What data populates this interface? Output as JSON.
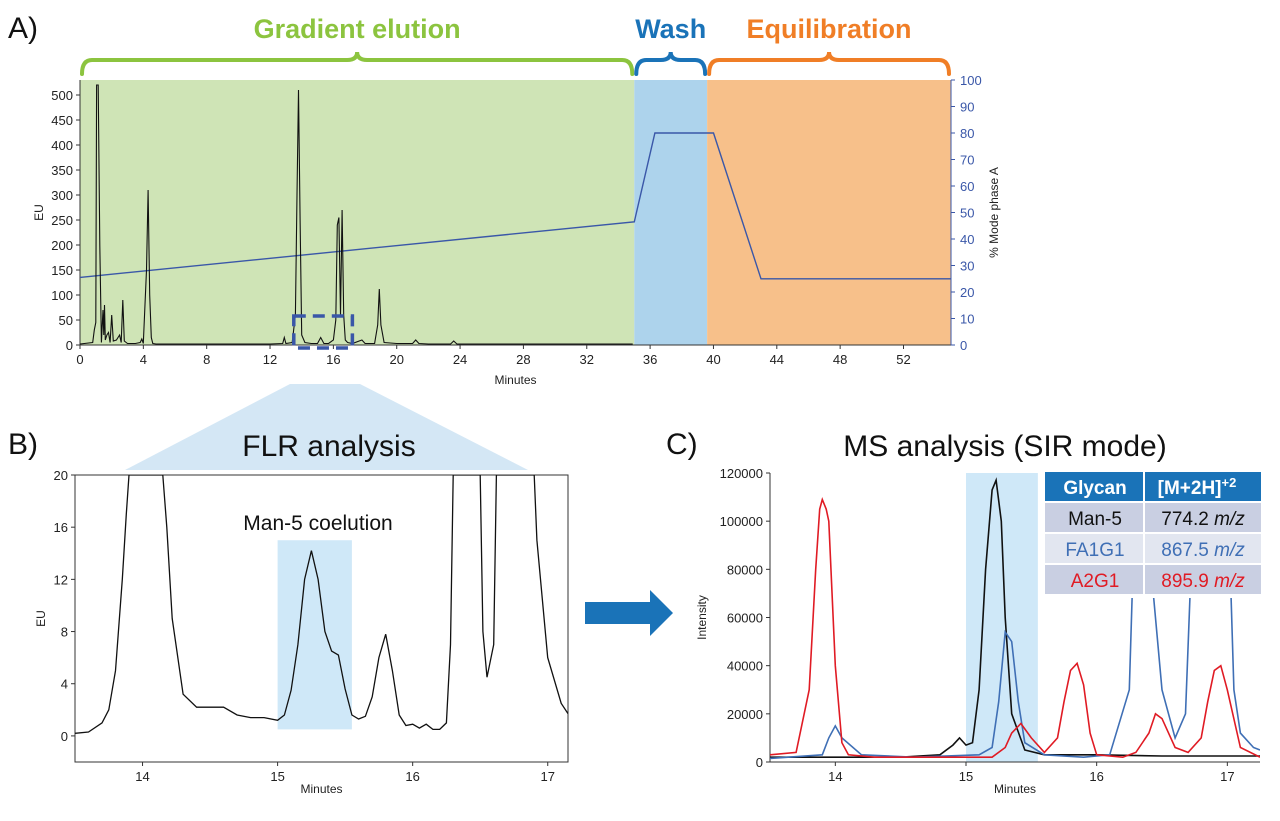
{
  "panels": {
    "a": {
      "label": "A)"
    },
    "b": {
      "label": "B)",
      "title": "FLR analysis",
      "annotation": "Man-5 coelution"
    },
    "c": {
      "label": "C)",
      "title": "MS analysis (SIR mode)"
    }
  },
  "table": {
    "headers": [
      "Glycan",
      "[M+2H]",
      "+2"
    ],
    "rows": [
      {
        "glycan": "Man-5",
        "mz": "774.2",
        "unit": "m/z",
        "color": "#111111",
        "bg": "#c9cfe2"
      },
      {
        "glycan": "FA1G1",
        "mz": "867.5",
        "unit": "m/z",
        "color": "#3f6fb5",
        "bg": "#e2e6f0"
      },
      {
        "glycan": "A2G1",
        "mz": "895.9",
        "unit": "m/z",
        "color": "#e01b24",
        "bg": "#c9cfe2"
      }
    ],
    "header_bg": "#1a73b8"
  },
  "chart_data": [
    {
      "id": "A",
      "type": "line",
      "xlabel": "Minutes",
      "ylabel": "EU",
      "y2label": "% Mode phase A",
      "xlim": [
        0,
        55
      ],
      "ylim": [
        0,
        520
      ],
      "y2lim": [
        0,
        100
      ],
      "x_ticks": [
        0,
        4,
        8,
        12,
        16,
        20,
        24,
        28,
        32,
        36,
        40,
        44,
        48,
        52
      ],
      "y_ticks": [
        0,
        50,
        100,
        150,
        200,
        250,
        300,
        350,
        400,
        450,
        500
      ],
      "y2_ticks": [
        0,
        10,
        20,
        30,
        40,
        50,
        60,
        70,
        80,
        90,
        100
      ],
      "regions": [
        {
          "name": "Gradient elution",
          "x": [
            0,
            35
          ],
          "color": "#cfe4b6",
          "label_color": "#8cc43f"
        },
        {
          "name": "Wash",
          "x": [
            35,
            39.6
          ],
          "color": "#add3ec",
          "label_color": "#1a73b8"
        },
        {
          "name": "Equilibration",
          "x": [
            39.6,
            55
          ],
          "color": "#f7c08a",
          "label_color": "#f07e26"
        }
      ],
      "zoom_box": {
        "x": [
          13.5,
          17.2
        ],
        "y": [
          0,
          58
        ]
      },
      "series": [
        {
          "axis": "y2",
          "color": "#3a57a8",
          "x": [
            0,
            35,
            36.3,
            40,
            43,
            55
          ],
          "y": [
            25.5,
            46.5,
            80,
            80,
            25,
            25
          ]
        },
        {
          "axis": "y",
          "color": "#111111",
          "x": [
            0,
            0.8,
            0.9,
            1.0,
            1.05,
            1.1,
            1.15,
            1.25,
            1.35,
            1.45,
            1.5,
            1.55,
            1.6,
            1.7,
            1.8,
            1.9,
            2.0,
            2.1,
            2.3,
            2.5,
            2.6,
            2.7,
            2.8,
            3.0,
            3.5,
            3.8,
            3.9,
            4.0,
            4.2,
            4.3,
            4.4,
            4.5,
            4.6,
            4.8,
            5.5,
            8,
            10,
            12,
            12.8,
            12.9,
            13.0,
            13.4,
            13.6,
            13.7,
            13.8,
            13.9,
            14.0,
            14.2,
            14.6,
            15.0,
            15.2,
            15.4,
            15.7,
            16.0,
            16.15,
            16.25,
            16.35,
            16.45,
            16.55,
            16.65,
            16.75,
            16.9,
            17.2,
            17.8,
            18.0,
            18.6,
            18.8,
            18.9,
            19.0,
            19.2,
            20,
            21,
            21.2,
            21.4,
            22,
            23.4,
            23.6,
            23.8,
            26,
            30,
            34.9
          ],
          "y": [
            2,
            5,
            30,
            45,
            520,
            520,
            520,
            200,
            5,
            70,
            20,
            80,
            10,
            20,
            25,
            5,
            60,
            8,
            10,
            20,
            5,
            90,
            8,
            3,
            3,
            5,
            12,
            3,
            150,
            310,
            100,
            15,
            3,
            2,
            2,
            2,
            2,
            2,
            3,
            15,
            3,
            5,
            60,
            300,
            510,
            250,
            20,
            5,
            3,
            3,
            15,
            3,
            3,
            10,
            50,
            240,
            255,
            60,
            270,
            60,
            10,
            5,
            3,
            10,
            3,
            3,
            40,
            112,
            40,
            5,
            3,
            3,
            10,
            3,
            2,
            2,
            8,
            2,
            2,
            2,
            2
          ]
        }
      ]
    },
    {
      "id": "B",
      "type": "line",
      "title": "FLR analysis",
      "xlabel": "Minutes",
      "ylabel": "EU",
      "xlim": [
        13.5,
        17.15
      ],
      "ylim": [
        -2,
        20
      ],
      "x_ticks": [
        14,
        15,
        16,
        17
      ],
      "y_ticks": [
        0,
        4,
        8,
        12,
        16,
        20
      ],
      "highlight": {
        "x": [
          15.0,
          15.55
        ],
        "y": [
          0.5,
          15
        ]
      },
      "series": [
        {
          "color": "#111111",
          "x": [
            13.5,
            13.6,
            13.7,
            13.75,
            13.8,
            13.85,
            13.88,
            13.9,
            13.93,
            14.15,
            14.18,
            14.22,
            14.3,
            14.4,
            14.5,
            14.6,
            14.7,
            14.8,
            14.9,
            15.0,
            15.05,
            15.1,
            15.15,
            15.2,
            15.25,
            15.3,
            15.35,
            15.4,
            15.45,
            15.5,
            15.55,
            15.6,
            15.65,
            15.7,
            15.75,
            15.8,
            15.85,
            15.9,
            15.95,
            16.0,
            16.05,
            16.1,
            16.15,
            16.2,
            16.25,
            16.28,
            16.3,
            16.5,
            16.52,
            16.55,
            16.6,
            16.62,
            16.65,
            16.7,
            16.75,
            16.8,
            16.85,
            16.9,
            16.92,
            17.0,
            17.1,
            17.15
          ],
          "y": [
            0.2,
            0.3,
            1,
            2,
            5,
            12,
            17,
            20,
            20,
            20,
            16,
            9,
            3.2,
            2.2,
            2.2,
            2.2,
            1.6,
            1.4,
            1.4,
            1.2,
            1.6,
            3.5,
            7,
            12,
            14.2,
            12,
            8,
            6.5,
            6.2,
            3.6,
            1.6,
            1.3,
            1.5,
            3,
            6,
            7.8,
            5,
            1.6,
            0.8,
            0.9,
            0.6,
            0.9,
            0.5,
            0.5,
            1,
            7,
            20,
            20,
            8,
            4.5,
            7,
            20,
            20,
            20,
            20,
            20,
            20,
            20,
            15,
            6,
            2.5,
            1.7
          ]
        }
      ]
    },
    {
      "id": "C",
      "type": "line",
      "title": "MS analysis (SIR mode)",
      "xlabel": "Minutes",
      "ylabel": "Intensity",
      "xlim": [
        13.5,
        17.25
      ],
      "ylim": [
        0,
        120000
      ],
      "x_ticks": [
        14,
        15,
        16,
        17
      ],
      "y_ticks": [
        0,
        20000,
        40000,
        60000,
        80000,
        100000,
        120000
      ],
      "highlight": {
        "x": [
          15.0,
          15.55
        ]
      },
      "series": [
        {
          "name": "Man-5",
          "color": "#111111",
          "x": [
            13.5,
            14.5,
            14.8,
            14.9,
            14.95,
            15.0,
            15.05,
            15.1,
            15.15,
            15.2,
            15.23,
            15.27,
            15.3,
            15.35,
            15.45,
            15.6,
            16,
            16.5,
            17,
            17.25
          ],
          "y": [
            2000,
            2000,
            3000,
            7000,
            10000,
            7000,
            8000,
            30000,
            80000,
            113000,
            117000,
            100000,
            60000,
            20000,
            5000,
            3000,
            3000,
            2500,
            2500,
            2500
          ]
        },
        {
          "name": "FA1G1",
          "color": "#3f6fb5",
          "x": [
            13.5,
            13.9,
            13.95,
            14.0,
            14.05,
            14.2,
            14.6,
            15.1,
            15.2,
            15.25,
            15.3,
            15.35,
            15.4,
            15.45,
            15.6,
            15.9,
            16.1,
            16.25,
            16.3,
            16.35,
            16.5,
            16.6,
            16.68,
            16.75,
            16.8,
            16.9,
            17.0,
            17.05,
            17.1,
            17.2,
            17.25
          ],
          "y": [
            1500,
            3000,
            10000,
            15000,
            10000,
            3000,
            2000,
            3000,
            6000,
            25000,
            54000,
            50000,
            25000,
            8000,
            3000,
            2000,
            3000,
            30000,
            120000,
            120000,
            30000,
            10000,
            20000,
            120000,
            120000,
            120000,
            120000,
            30000,
            12000,
            6000,
            5000
          ]
        },
        {
          "name": "A2G1",
          "color": "#e01b24",
          "x": [
            13.5,
            13.7,
            13.8,
            13.85,
            13.88,
            13.9,
            13.93,
            13.95,
            14.0,
            14.05,
            14.1,
            14.3,
            15.2,
            15.3,
            15.35,
            15.42,
            15.5,
            15.6,
            15.7,
            15.75,
            15.8,
            15.85,
            15.9,
            15.95,
            16.0,
            16.2,
            16.3,
            16.4,
            16.45,
            16.5,
            16.6,
            16.7,
            16.8,
            16.85,
            16.9,
            16.95,
            17.0,
            17.1,
            17.25
          ],
          "y": [
            3000,
            4000,
            30000,
            80000,
            105000,
            109000,
            105000,
            100000,
            40000,
            8000,
            3000,
            2000,
            2000,
            6000,
            12000,
            16000,
            10000,
            4000,
            10000,
            25000,
            38000,
            41000,
            32000,
            12000,
            3000,
            2000,
            4000,
            12000,
            20000,
            18000,
            6000,
            4000,
            10000,
            25000,
            38000,
            40000,
            30000,
            6000,
            2000
          ]
        }
      ]
    }
  ]
}
